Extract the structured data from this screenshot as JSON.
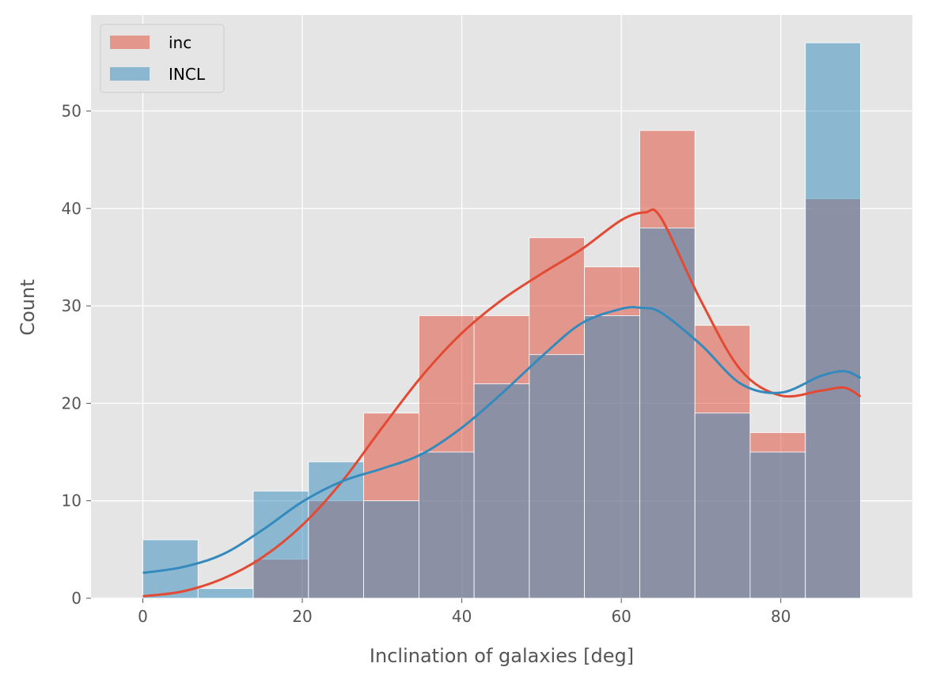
{
  "chart_data": {
    "type": "bar",
    "chart_kind": "histogram-with-kde",
    "xlabel": "Inclination of galaxies [deg]",
    "ylabel": "Count",
    "xlim": [
      -6.5,
      96.5
    ],
    "ylim": [
      0,
      59.85
    ],
    "xticks": [
      0,
      20,
      40,
      60,
      80
    ],
    "yticks": [
      0,
      10,
      20,
      30,
      40,
      50
    ],
    "grid": true,
    "legend_position": "top-left",
    "bin_edges": [
      0,
      6.92,
      13.85,
      20.77,
      27.69,
      34.62,
      41.54,
      48.46,
      55.38,
      62.31,
      69.23,
      76.15,
      83.08,
      90
    ],
    "series": [
      {
        "name": "inc",
        "color": "#E24A33",
        "values": [
          0,
          0,
          4,
          10,
          19,
          29,
          29,
          37,
          34,
          48,
          28,
          17,
          41
        ],
        "kde": {
          "x": [
            0,
            5,
            10,
            15,
            20,
            25,
            30,
            35,
            40,
            45,
            50,
            55,
            60,
            63,
            65,
            70,
            75,
            80,
            85,
            88,
            90
          ],
          "y": [
            0.2,
            0.7,
            2.0,
            4.2,
            7.5,
            12.0,
            17.5,
            22.8,
            27.2,
            30.6,
            33.3,
            35.8,
            38.8,
            39.6,
            39.0,
            30.5,
            23.4,
            20.8,
            21.3,
            21.6,
            20.7
          ]
        }
      },
      {
        "name": "INCL",
        "color": "#348ABD",
        "values": [
          6,
          1,
          11,
          14,
          10,
          15,
          22,
          25,
          29,
          38,
          19,
          15,
          57
        ],
        "kde": {
          "x": [
            0,
            5,
            10,
            15,
            20,
            25,
            30,
            35,
            40,
            45,
            50,
            55,
            60,
            62.5,
            65,
            70,
            75,
            80,
            85,
            88,
            90
          ],
          "y": [
            2.6,
            3.2,
            4.5,
            7.0,
            9.9,
            12.0,
            13.3,
            14.8,
            17.5,
            21.0,
            24.8,
            28.2,
            29.7,
            29.8,
            29.3,
            26.0,
            22.0,
            21.1,
            22.8,
            23.3,
            22.6
          ]
        }
      }
    ]
  }
}
